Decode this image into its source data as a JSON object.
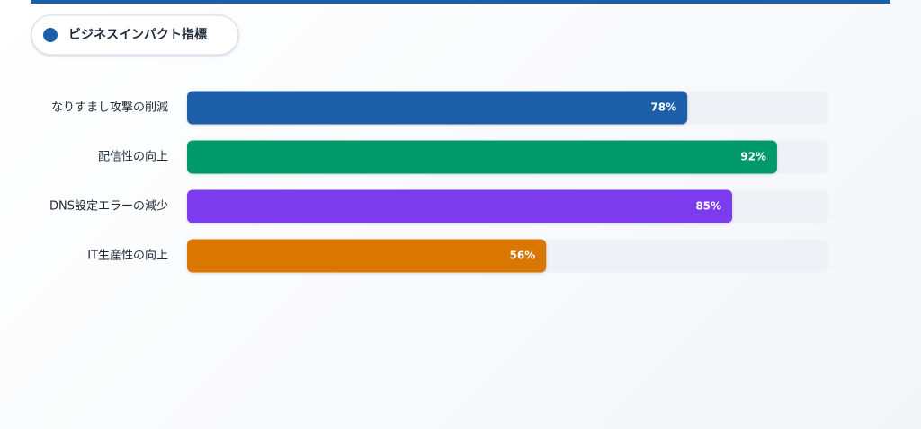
{
  "chart_data": {
    "type": "bar",
    "title": "ビジネスインパクト指標",
    "categories": [
      "なりすまし攻撃の削減",
      "配信性の向上",
      "DNS設定エラーの減少",
      "IT生産性の向上"
    ],
    "values": [
      78,
      92,
      85,
      56
    ],
    "value_labels": [
      "78%",
      "92%",
      "85%",
      "56%"
    ],
    "colors": [
      "#1a5fa8",
      "#069a6b",
      "#7c3aed",
      "#d97706"
    ],
    "xlim": [
      0,
      100
    ]
  }
}
